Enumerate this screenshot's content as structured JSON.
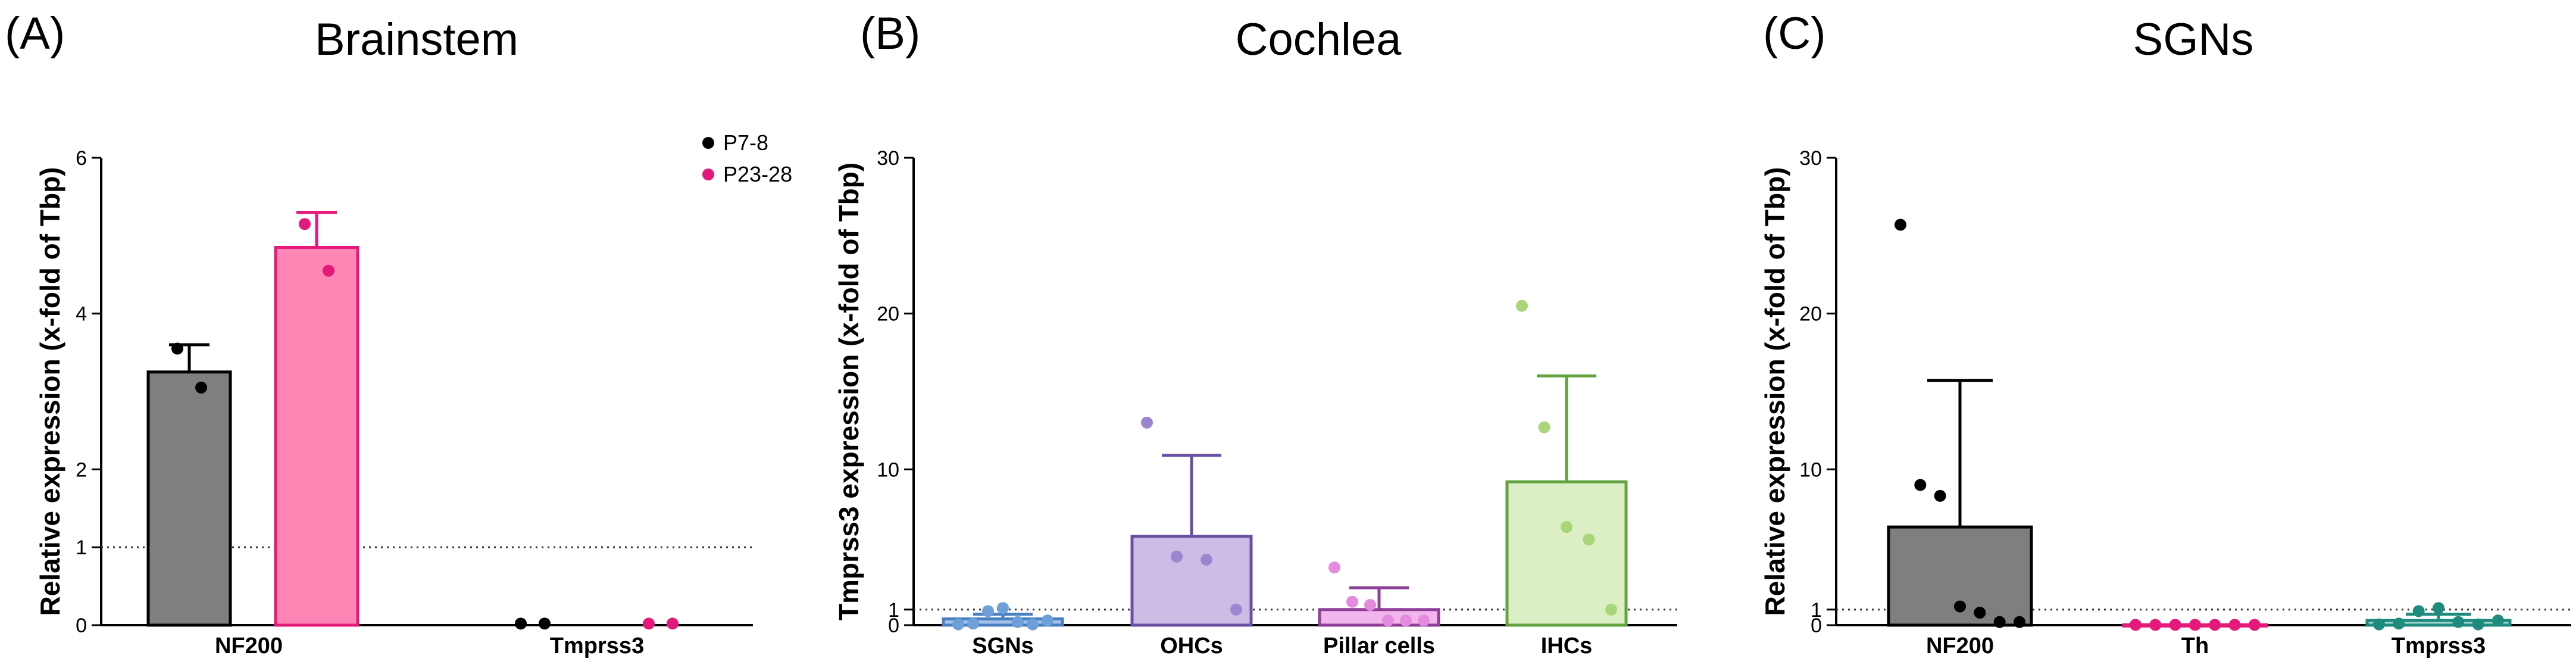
{
  "chart_data": [
    {
      "type": "bar",
      "panel": "(A)",
      "title": "Brainstem",
      "xlabel": "",
      "ylabel": "Relative expression (x-fold of Tbp)",
      "ylim": [
        0,
        6
      ],
      "yticks": [
        0,
        1,
        2,
        4,
        6
      ],
      "reference_line": 1,
      "categories": [
        "NF200",
        "Tmprss3"
      ],
      "legend": {
        "position": "top-right",
        "entries": [
          "P7-8",
          "P23-28"
        ]
      },
      "series": [
        {
          "name": "P7-8",
          "color": "#000000",
          "bar_color": "#7f7f7f",
          "values": [
            3.25,
            0
          ],
          "error": [
            0.35,
            0
          ],
          "points": [
            [
              3.55,
              3.05
            ],
            [
              0.02,
              0.02
            ]
          ]
        },
        {
          "name": "P23-28",
          "color": "#e5197a",
          "bar_color": "#ff85b4",
          "values": [
            4.85,
            0
          ],
          "error": [
            0.45,
            0
          ],
          "points": [
            [
              5.15,
              4.55
            ],
            [
              0.02,
              0.02
            ]
          ]
        }
      ]
    },
    {
      "type": "bar",
      "panel": "(B)",
      "title": "Cochlea",
      "xlabel": "",
      "ylabel": "Tmprss3 expression (x-fold of Tbp)",
      "ylim": [
        0,
        30
      ],
      "yticks": [
        0,
        1,
        10,
        20,
        30
      ],
      "reference_line": 1,
      "categories": [
        "SGNs",
        "OHCs",
        "Pillar cells",
        "IHCs"
      ],
      "bars": [
        {
          "value": 0.4,
          "error": 0.3,
          "fill": "#a4c2e8",
          "stroke": "#4a7fc1",
          "points": [
            0.05,
            0.1,
            0.9,
            1.1,
            0.2,
            0.05,
            0.3
          ]
        },
        {
          "value": 5.7,
          "error": 5.2,
          "fill": "#cbbde6",
          "stroke": "#6a4fa3",
          "points": [
            13.0,
            4.4,
            4.2,
            1.0
          ]
        },
        {
          "value": 1.0,
          "error": 1.4,
          "fill": "#f1b6ec",
          "stroke": "#8e3f9a",
          "points": [
            3.7,
            1.5,
            1.3,
            0.3,
            0.3,
            0.3
          ]
        },
        {
          "value": 9.2,
          "error": 6.8,
          "fill": "#dceec3",
          "stroke": "#62a33f",
          "points": [
            20.5,
            12.7,
            6.3,
            5.5,
            1.0
          ]
        }
      ]
    },
    {
      "type": "bar",
      "panel": "(C)",
      "title": "SGNs",
      "xlabel": "",
      "ylabel": "Relative expression (x-fold of Tbp)",
      "ylim": [
        0,
        30
      ],
      "yticks": [
        0,
        1,
        10,
        20,
        30
      ],
      "reference_line": 1,
      "categories": [
        "NF200",
        "Th",
        "Tmprss3"
      ],
      "bars": [
        {
          "value": 6.3,
          "error": 9.4,
          "fill": "#7f7f7f",
          "stroke": "#000000",
          "point_color": "#000000",
          "points": [
            25.7,
            9.0,
            8.3,
            1.2,
            0.8,
            0.2,
            0.2
          ]
        },
        {
          "value": 0.02,
          "error": 0,
          "fill": "#ff85b4",
          "stroke": "#e5197a",
          "point_color": "#e5197a",
          "points": [
            0.02,
            0.02,
            0.02,
            0.02,
            0.02,
            0.02,
            0.02
          ]
        },
        {
          "value": 0.3,
          "error": 0.4,
          "fill": "#9fd3cc",
          "stroke": "#1f8a7e",
          "point_color": "#1f8a7e",
          "points": [
            0.05,
            0.1,
            0.9,
            1.1,
            0.2,
            0.05,
            0.3
          ]
        }
      ]
    }
  ]
}
